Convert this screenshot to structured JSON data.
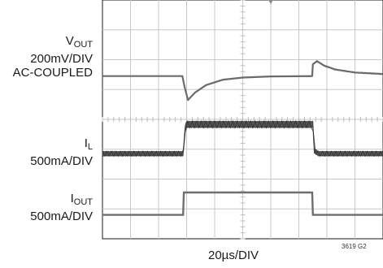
{
  "chart_data": {
    "type": "line",
    "title": "",
    "figure_id": "3619 G2",
    "xlabel": "20µs/DIV",
    "grid": true,
    "divisions": {
      "x": 10,
      "y": 8
    },
    "x_unit": "µs",
    "x_per_div": 20,
    "xlim": [
      0,
      200
    ],
    "series": [
      {
        "main": "V",
        "sub": "OUT",
        "scale": "200mV/DIV",
        "coupling": "AC-COUPLED",
        "color": "#6b6b6b",
        "baseline_div": 5.45,
        "points_us": [
          [
            0,
            0
          ],
          [
            57,
            0
          ],
          [
            58.5,
            -0.35
          ],
          [
            61,
            -0.8
          ],
          [
            66,
            -0.55
          ],
          [
            74,
            -0.3
          ],
          [
            86,
            -0.12
          ],
          [
            100,
            -0.05
          ],
          [
            120,
            -0.01
          ],
          [
            149.5,
            0
          ],
          [
            150,
            0.4
          ],
          [
            153,
            0.5
          ],
          [
            158,
            0.35
          ],
          [
            166,
            0.22
          ],
          [
            180,
            0.12
          ],
          [
            200,
            0.07
          ]
        ]
      },
      {
        "main": "I",
        "sub": "L",
        "scale": "500mA/DIV",
        "coupling": "",
        "color": "#555555",
        "baseline_div": 2.85,
        "ripple_div": [
          0.16,
          0.22
        ],
        "points_us": [
          [
            0,
            0
          ],
          [
            57.5,
            0
          ],
          [
            59,
            0.85
          ],
          [
            60,
            0.98
          ],
          [
            150,
            0.98
          ],
          [
            151,
            0.1
          ],
          [
            154,
            0
          ],
          [
            200,
            0
          ]
        ]
      },
      {
        "main": "I",
        "sub": "OUT",
        "scale": "500mA/DIV",
        "coupling": "",
        "color": "#6e6e6e",
        "baseline_div": 0.8,
        "points_us": [
          [
            0,
            0
          ],
          [
            57.5,
            0
          ],
          [
            58,
            0.75
          ],
          [
            149.5,
            0.75
          ],
          [
            150,
            0
          ],
          [
            200,
            0
          ]
        ]
      }
    ]
  }
}
